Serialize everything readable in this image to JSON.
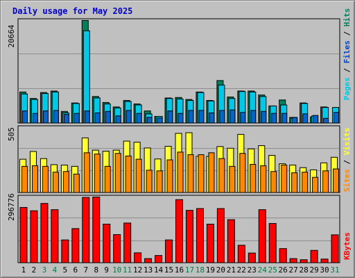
{
  "title": "Daily usage for May 2025",
  "colors": {
    "background": "#c0c0c0",
    "plot": "#c0c0c0",
    "grid": "#8e8e8e",
    "title": "#0000cc",
    "hits": "#00805a",
    "files": "#00c8e6",
    "visits": "#ffff33",
    "sites": "#ff8800",
    "kbytes": "#ff0000",
    "day_normal": "#000000",
    "day_weekend": "#00804a"
  },
  "axis_labels": {
    "top_max": "20664",
    "middle_max": "505",
    "bottom_max": "296776"
  },
  "legends": {
    "top": [
      "Pages",
      "Files",
      "Hits"
    ],
    "middle": [
      "Sites",
      "Visits"
    ],
    "bottom": [
      "KBytes"
    ],
    "separator": "/"
  },
  "chart_data": {
    "type": "bar",
    "title": "Daily usage for May 2025",
    "categories": [
      "1",
      "2",
      "3",
      "4",
      "5",
      "6",
      "7",
      "8",
      "9",
      "10",
      "11",
      "12",
      "13",
      "14",
      "15",
      "16",
      "17",
      "18",
      "19",
      "20",
      "21",
      "22",
      "23",
      "24",
      "25",
      "26",
      "27",
      "28",
      "29",
      "30",
      "31"
    ],
    "weekend_days": [
      "3",
      "4",
      "10",
      "11",
      "17",
      "18",
      "24",
      "25",
      "31"
    ],
    "panels": [
      {
        "name": "top",
        "ymax": 20664,
        "series": [
          {
            "name": "Hits",
            "values": [
              6300,
              5000,
              6200,
              6500,
              2400,
              4100,
              20664,
              5400,
              4200,
              3300,
              4600,
              3900,
              2500,
              1400,
              5100,
              5200,
              4800,
              6300,
              4600,
              8600,
              5300,
              6500,
              6500,
              5700,
              3500,
              4700,
              1200,
              4100,
              1300,
              3300,
              0
            ]
          },
          {
            "name": "Files",
            "values": [
              5900,
              4800,
              6000,
              6300,
              2100,
              4000,
              18600,
              5100,
              3900,
              3100,
              4400,
              3700,
              1900,
              1400,
              5000,
              4900,
              4600,
              6200,
              4500,
              7700,
              5000,
              6400,
              6300,
              5400,
              3500,
              3700,
              1000,
              4000,
              1500,
              3200,
              3200
            ]
          },
          {
            "name": "Pages",
            "values": [
              2500,
              2000,
              2500,
              2600,
              1800,
              2000,
              2500,
              2100,
              2400,
              1500,
              2600,
              2000,
              1200,
              1100,
              2500,
              2000,
              2600,
              2600,
              2100,
              2600,
              2700,
              2200,
              2600,
              2400,
              2000,
              2000,
              1200,
              1900,
              1600,
              1000,
              2200
            ]
          }
        ]
      },
      {
        "name": "middle",
        "ymax": 505,
        "series": [
          {
            "name": "Visits",
            "values": [
              260,
              320,
              265,
              218,
              215,
              205,
              425,
              330,
              322,
              330,
              400,
              392,
              347,
              262,
              360,
              460,
              465,
              282,
              282,
              358,
              345,
              452,
              340,
              365,
              290,
              225,
              215,
              195,
              178,
              232,
              275
            ]
          },
          {
            "name": "Sites",
            "values": [
              205,
              210,
              205,
              160,
              165,
              145,
              310,
              300,
              205,
              305,
              285,
              260,
              175,
              170,
              255,
              315,
              295,
              295,
              310,
              265,
              205,
              305,
              220,
              210,
              165,
              215,
              155,
              160,
              120,
              170,
              185
            ]
          }
        ]
      },
      {
        "name": "bottom",
        "ymax": 296776,
        "series": [
          {
            "name": "KBytes",
            "values": [
              250000,
              235000,
              268000,
              240000,
              104000,
              155000,
              295000,
              296776,
              175000,
              128000,
              180000,
              46000,
              20000,
              34000,
              104000,
              285000,
              237000,
              245000,
              175000,
              245000,
              195000,
              80000,
              45000,
              240000,
              178000,
              65000,
              20000,
              15000,
              57000,
              18000,
              127000
            ]
          }
        ]
      }
    ]
  }
}
